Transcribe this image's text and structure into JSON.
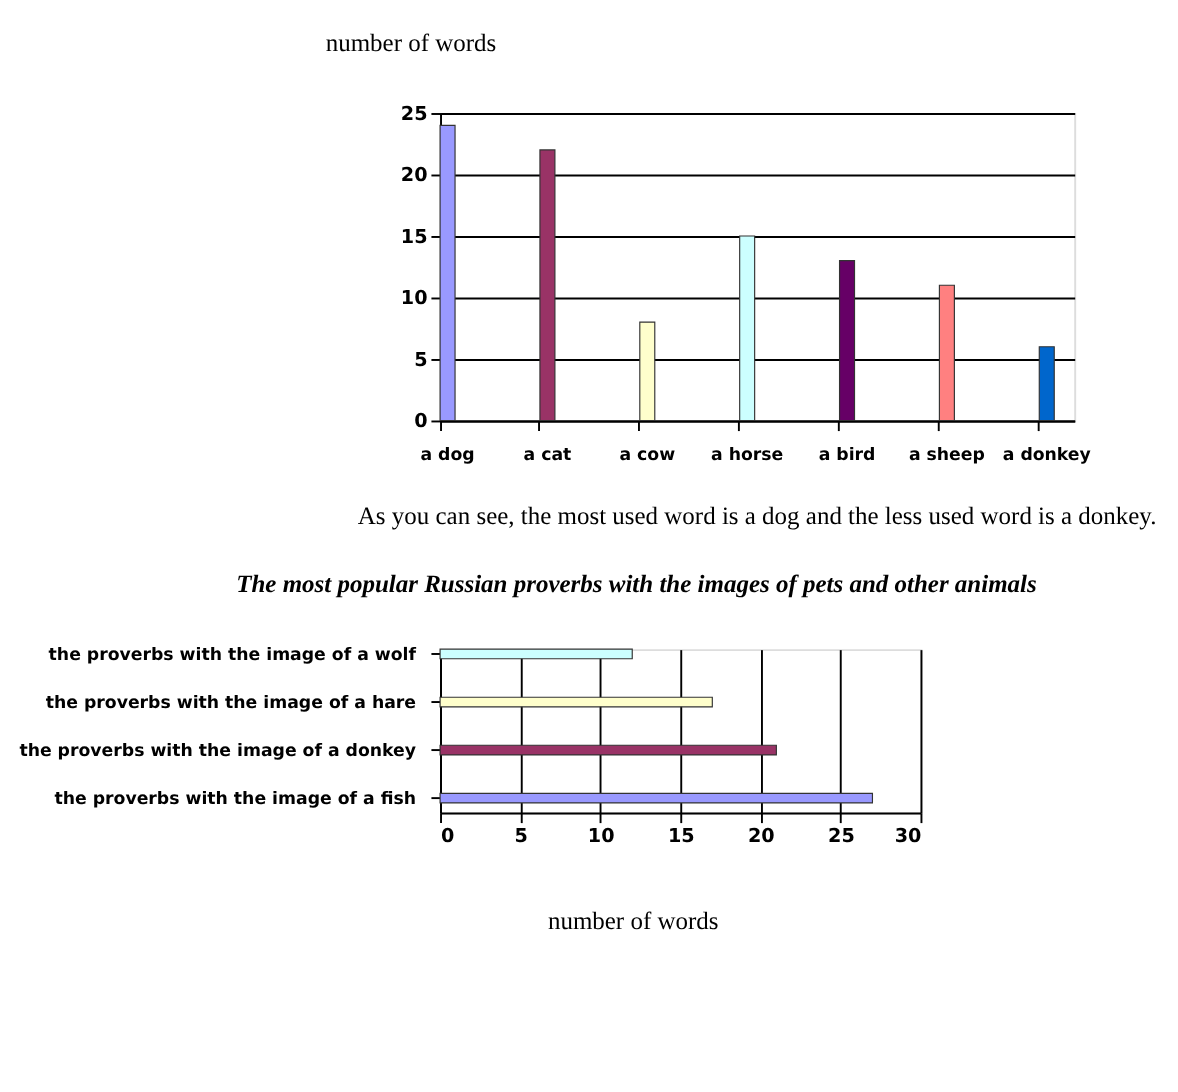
{
  "chart_data": [
    {
      "type": "bar",
      "ylabel": "number of words",
      "categories": [
        "a dog",
        "a cat",
        "a cow",
        "a horse",
        "a bird",
        "a sheep",
        "a donkey"
      ],
      "values": [
        24,
        22,
        8,
        15,
        13,
        11,
        6
      ],
      "colors": [
        "#9999ff",
        "#993366",
        "#ffffcc",
        "#ccffff",
        "#660066",
        "#ff8080",
        "#0066cc"
      ],
      "ylim": [
        0,
        25
      ],
      "yticks": [
        0,
        5,
        10,
        15,
        20,
        25
      ],
      "grid": "y",
      "annotations": [
        "As you can see, the most used word is a dog and the less used word is a donkey."
      ]
    },
    {
      "type": "bar",
      "orientation": "horizontal",
      "title": "The most popular Russian proverbs with the images of pets and other animals",
      "xlabel": "number of words",
      "categories": [
        "the proverbs with the image  of a wolf",
        "the proverbs with the image of a hare",
        "the proverbs with the image  of a donkey",
        "the proverbs with the image  of a fish"
      ],
      "values": [
        12,
        17,
        21,
        27
      ],
      "colors": [
        "#ccffff",
        "#ffffcc",
        "#993366",
        "#9999ff"
      ],
      "xlim": [
        0,
        30
      ],
      "xticks": [
        0,
        5,
        10,
        15,
        20,
        25,
        30
      ],
      "grid": "x"
    }
  ]
}
